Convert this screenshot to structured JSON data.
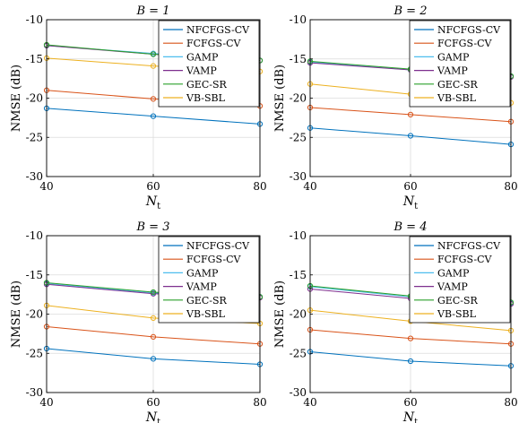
{
  "chart_data": [
    {
      "type": "line",
      "title": "B = 1",
      "xlabel": "N_t",
      "ylabel": "NMSE (dB)",
      "x": [
        40,
        60,
        80
      ],
      "xticks": [
        "40",
        "60",
        "80"
      ],
      "ylim": [
        -30,
        -10
      ],
      "yticks": [
        "-30",
        "-25",
        "-20",
        "-15",
        "-10"
      ],
      "grid": true,
      "legend_position": "top-right",
      "series": [
        {
          "name": "NFCFGS-CV",
          "color": "#0072BD",
          "values": [
            -21.3,
            -22.3,
            -23.3
          ]
        },
        {
          "name": "FCFGS-CV",
          "color": "#D95319",
          "values": [
            -19.0,
            -20.1,
            -21.0
          ]
        },
        {
          "name": "GAMP",
          "color": "#4DBEEE",
          "values": [
            -13.3,
            -14.3,
            -15.2
          ]
        },
        {
          "name": "VAMP",
          "color": "#7E2F8E",
          "values": [
            -13.3,
            -14.4,
            -15.2
          ]
        },
        {
          "name": "GEC-SR",
          "color": "#2CA02C",
          "values": [
            -13.2,
            -14.4,
            -15.2
          ]
        },
        {
          "name": "VB-SBL",
          "color": "#EDB120",
          "values": [
            -14.9,
            -15.9,
            -16.6
          ]
        }
      ]
    },
    {
      "type": "line",
      "title": "B = 2",
      "xlabel": "N_t",
      "ylabel": "NMSE (dB)",
      "x": [
        40,
        60,
        80
      ],
      "xticks": [
        "40",
        "60",
        "80"
      ],
      "ylim": [
        -30,
        -10
      ],
      "yticks": [
        "-30",
        "-25",
        "-20",
        "-15",
        "-10"
      ],
      "grid": true,
      "legend_position": "top-right",
      "series": [
        {
          "name": "NFCFGS-CV",
          "color": "#0072BD",
          "values": [
            -23.8,
            -24.8,
            -25.9
          ]
        },
        {
          "name": "FCFGS-CV",
          "color": "#D95319",
          "values": [
            -21.2,
            -22.1,
            -23.0
          ]
        },
        {
          "name": "GAMP",
          "color": "#4DBEEE",
          "values": [
            -15.4,
            -16.4,
            -17.2
          ]
        },
        {
          "name": "VAMP",
          "color": "#7E2F8E",
          "values": [
            -15.5,
            -16.4,
            -17.3
          ]
        },
        {
          "name": "GEC-SR",
          "color": "#2CA02C",
          "values": [
            -15.3,
            -16.3,
            -17.2
          ]
        },
        {
          "name": "VB-SBL",
          "color": "#EDB120",
          "values": [
            -18.2,
            -19.5,
            -20.6
          ]
        }
      ]
    },
    {
      "type": "line",
      "title": "B = 3",
      "xlabel": "N_t",
      "ylabel": "NMSE (dB)",
      "x": [
        40,
        60,
        80
      ],
      "xticks": [
        "40",
        "60",
        "80"
      ],
      "ylim": [
        -30,
        -10
      ],
      "yticks": [
        "-30",
        "-25",
        "-20",
        "-15",
        "-10"
      ],
      "grid": true,
      "legend_position": "top-right",
      "series": [
        {
          "name": "NFCFGS-CV",
          "color": "#0072BD",
          "values": [
            -24.4,
            -25.7,
            -26.4
          ]
        },
        {
          "name": "FCFGS-CV",
          "color": "#D95319",
          "values": [
            -21.6,
            -22.9,
            -23.8
          ]
        },
        {
          "name": "GAMP",
          "color": "#4DBEEE",
          "values": [
            -16.1,
            -17.3,
            -17.8
          ]
        },
        {
          "name": "VAMP",
          "color": "#7E2F8E",
          "values": [
            -16.2,
            -17.4,
            -17.9
          ]
        },
        {
          "name": "GEC-SR",
          "color": "#2CA02C",
          "values": [
            -16.0,
            -17.2,
            -17.8
          ]
        },
        {
          "name": "VB-SBL",
          "color": "#EDB120",
          "values": [
            -18.9,
            -20.5,
            -21.2
          ]
        }
      ]
    },
    {
      "type": "line",
      "title": "B = 4",
      "xlabel": "N_t",
      "ylabel": "NMSE (dB)",
      "x": [
        40,
        60,
        80
      ],
      "xticks": [
        "40",
        "60",
        "80"
      ],
      "ylim": [
        -30,
        -10
      ],
      "yticks": [
        "-30",
        "-25",
        "-20",
        "-15",
        "-10"
      ],
      "grid": true,
      "legend_position": "top-right",
      "series": [
        {
          "name": "NFCFGS-CV",
          "color": "#0072BD",
          "values": [
            -24.8,
            -26.0,
            -26.6
          ]
        },
        {
          "name": "FCFGS-CV",
          "color": "#D95319",
          "values": [
            -22.0,
            -23.1,
            -23.8
          ]
        },
        {
          "name": "GAMP",
          "color": "#4DBEEE",
          "values": [
            -16.5,
            -17.8,
            -18.6
          ]
        },
        {
          "name": "VAMP",
          "color": "#7E2F8E",
          "values": [
            -16.8,
            -18.0,
            -18.7
          ]
        },
        {
          "name": "GEC-SR",
          "color": "#2CA02C",
          "values": [
            -16.4,
            -17.7,
            -18.5
          ]
        },
        {
          "name": "VB-SBL",
          "color": "#EDB120",
          "values": [
            -19.5,
            -20.9,
            -22.1
          ]
        }
      ]
    }
  ]
}
